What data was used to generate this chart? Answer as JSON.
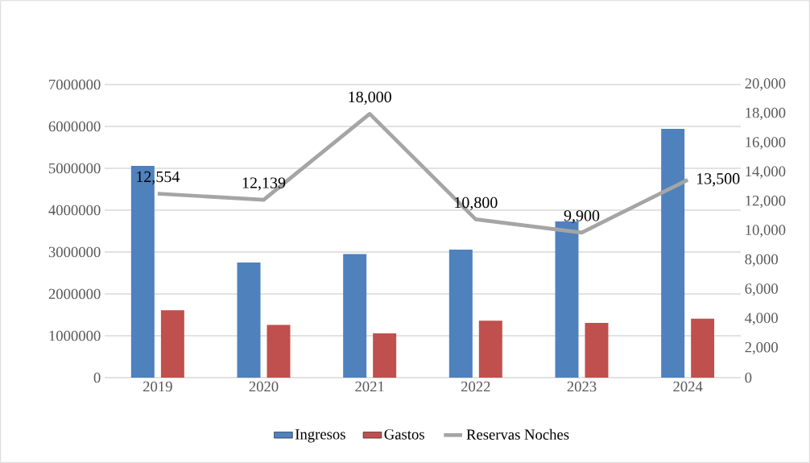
{
  "chart_data": {
    "type": "bar",
    "categories": [
      "2019",
      "2020",
      "2021",
      "2022",
      "2023",
      "2024"
    ],
    "series": [
      {
        "name": "Ingresos",
        "color": "#4f81bd",
        "values": [
          5060000,
          2750000,
          2950000,
          3060000,
          3730000,
          5940000
        ]
      },
      {
        "name": "Gastos",
        "color": "#c0504d",
        "values": [
          1610000,
          1260000,
          1060000,
          1360000,
          1310000,
          1410000
        ]
      },
      {
        "name": "Reservas Noches",
        "type": "line",
        "axis": "y2",
        "color": "#a5a5a5",
        "values": [
          12554,
          12139,
          18000,
          10800,
          9900,
          13500
        ],
        "value_labels": [
          "12,554",
          "12,139",
          "18,000",
          "10,800",
          "9,900",
          "13,500"
        ]
      }
    ],
    "ylim": [
      0,
      7000000
    ],
    "yticks": [
      0,
      1000000,
      2000000,
      3000000,
      4000000,
      5000000,
      6000000,
      7000000
    ],
    "y2lim": [
      0,
      20000
    ],
    "y2ticks": [
      0,
      {
        "value": 2000,
        "label": "2,000"
      },
      {
        "value": 4000,
        "label": "4,000"
      },
      {
        "value": 6000,
        "label": "6,000"
      },
      {
        "value": 8000,
        "label": "8,000"
      },
      {
        "value": 10000,
        "label": "10,000"
      },
      {
        "value": 12000,
        "label": "12,000"
      },
      {
        "value": 14000,
        "label": "14,000"
      },
      {
        "value": 16000,
        "label": "16,000"
      },
      {
        "value": 18000,
        "label": "18,000"
      },
      {
        "value": 20000,
        "label": "20,000"
      }
    ],
    "grid": "y",
    "legend": "bottom",
    "marker": "none"
  }
}
